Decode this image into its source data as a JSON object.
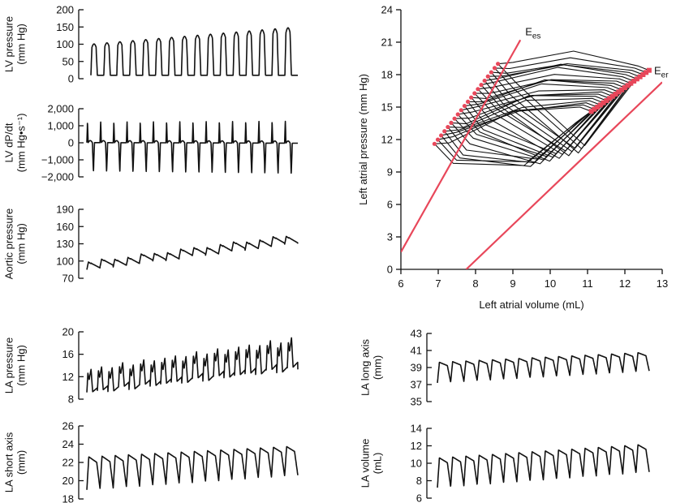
{
  "chart_data": [
    {
      "id": "lvp",
      "type": "line",
      "ylabel": [
        "LV pressure",
        "(mm Hg)"
      ],
      "ylim": [
        0,
        200
      ],
      "yticks": [
        0,
        50,
        100,
        150,
        200
      ],
      "ytick_labels": [
        "0",
        "50",
        "100",
        "150",
        "200"
      ],
      "series": [
        {
          "beats": 16,
          "min_start": 10,
          "min_end": 10,
          "max_start": 100,
          "max_end": 150
        }
      ]
    },
    {
      "id": "dpdt",
      "type": "line",
      "ylabel": [
        "LV dP/dt",
        "(mm Hg•s⁻¹)"
      ],
      "ylim": [
        -2000,
        2000
      ],
      "yticks": [
        -2000,
        -1000,
        0,
        1000,
        2000
      ],
      "ytick_labels": [
        "−2,000",
        "−1,000",
        "0",
        "1,000",
        "2,000"
      ],
      "series": [
        {
          "beats": 16,
          "min_start": -1700,
          "min_end": -1850,
          "max_start": 1250,
          "max_end": 1300
        }
      ]
    },
    {
      "id": "aop",
      "type": "line",
      "ylabel": [
        "Aortic pressure",
        "(mm Hg)"
      ],
      "ylim": [
        70,
        190
      ],
      "yticks": [
        70,
        100,
        130,
        160,
        190
      ],
      "ytick_labels": [
        "70",
        "100",
        "130",
        "160",
        "190"
      ],
      "series": [
        {
          "beats": 16,
          "min_start": 85,
          "min_end": 132,
          "max_start": 98,
          "max_end": 146
        }
      ]
    },
    {
      "id": "lap",
      "type": "line",
      "ylabel": [
        "LA pressure",
        "(mm Hg)"
      ],
      "ylim": [
        8,
        20
      ],
      "yticks": [
        8,
        12,
        16,
        20
      ],
      "ytick_labels": [
        "8",
        "12",
        "16",
        "20"
      ],
      "series": [
        {
          "beats": 20,
          "min_start": 9.2,
          "min_end": 13.5,
          "max_start": 13.2,
          "max_end": 18.8
        }
      ]
    },
    {
      "id": "lashort",
      "type": "line",
      "ylabel": [
        "LA short axis",
        "(mm)"
      ],
      "ylim": [
        18,
        26
      ],
      "yticks": [
        18,
        20,
        22,
        24,
        26
      ],
      "ytick_labels": [
        "18",
        "20",
        "22",
        "24",
        "26"
      ],
      "series": [
        {
          "beats": 16,
          "min_start": 19.0,
          "min_end": 20.6,
          "max_start": 22.6,
          "max_end": 23.8
        }
      ]
    },
    {
      "id": "lalong",
      "type": "line",
      "ylabel": [
        "LA long axis",
        "(mm)"
      ],
      "ylim": [
        35,
        43
      ],
      "yticks": [
        35,
        37,
        39,
        41,
        43
      ],
      "ytick_labels": [
        "35",
        "37",
        "39",
        "41",
        "43"
      ],
      "series": [
        {
          "beats": 16,
          "min_start": 37.2,
          "min_end": 38.6,
          "max_start": 39.6,
          "max_end": 40.8
        }
      ]
    },
    {
      "id": "lavol",
      "type": "line",
      "ylabel": [
        "LA volume",
        "(mL)"
      ],
      "ylim": [
        6,
        14
      ],
      "yticks": [
        6,
        8,
        10,
        12,
        14
      ],
      "ytick_labels": [
        "6",
        "8",
        "10",
        "12",
        "14"
      ],
      "series": [
        {
          "beats": 16,
          "min_start": 7.2,
          "min_end": 9.0,
          "max_start": 10.6,
          "max_end": 12.2
        }
      ]
    },
    {
      "id": "pv",
      "type": "line",
      "xlabel": "Left atrial volume (mL)",
      "ylabel": "Left atrial pressure (mm Hg)",
      "xlim": [
        6,
        13
      ],
      "ylim": [
        0,
        24
      ],
      "xticks": [
        6,
        7,
        8,
        9,
        10,
        11,
        12,
        13
      ],
      "yticks": [
        0,
        3,
        6,
        9,
        12,
        15,
        18,
        21,
        24
      ],
      "series": [
        {
          "name": "Ees",
          "label_main": "E",
          "label_sub": "es",
          "color": "#e8475a",
          "x": [
            6.0,
            9.2
          ],
          "y": [
            1.6,
            21.2
          ]
        },
        {
          "name": "Eer",
          "label_main": "E",
          "label_sub": "er",
          "color": "#e8475a",
          "x": [
            7.75,
            13.0
          ],
          "y": [
            0.0,
            17.3
          ]
        }
      ],
      "loops": {
        "count": 20,
        "es_points": {
          "x0": 6.9,
          "y0": 11.6,
          "x1": 8.6,
          "y1": 19.0
        },
        "er_points": {
          "x0": 11.1,
          "y0": 14.6,
          "x1": 12.65,
          "y1": 18.4
        }
      }
    }
  ]
}
